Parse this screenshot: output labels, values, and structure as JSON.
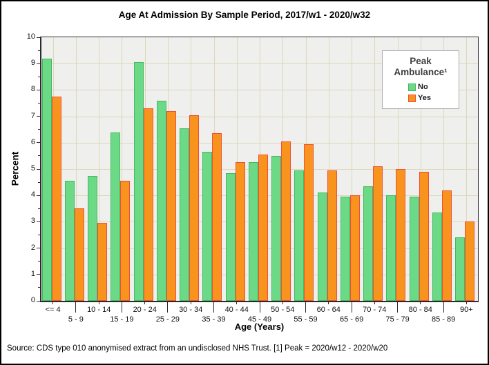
{
  "title": "Age At Admission By Sample Period, 2017/w1 - 2020/w32",
  "source": "Source: CDS type 010 anonymised extract from an undisclosed NHS Trust. [1] Peak = 2020/w12 - 2020/w20",
  "chart_data": {
    "type": "bar",
    "title": "Age At Admission By Sample Period, 2017/w1 - 2020/w32",
    "xlabel": "Age (Years)",
    "ylabel": "Percent",
    "ylim": [
      0,
      10
    ],
    "y_ticks": [
      0,
      1,
      2,
      3,
      4,
      5,
      6,
      7,
      8,
      9,
      10
    ],
    "y_minor_tick_step": 0.5,
    "grid": true,
    "grid_color": "#dcd8b6",
    "plot_bg": "#efefee",
    "legend": {
      "title": "Peak Ambulance¹",
      "position": "top-right"
    },
    "categories": [
      "<= 4",
      "5 - 9",
      "10 - 14",
      "15 - 19",
      "20 - 24",
      "25 - 29",
      "30 - 34",
      "35 - 39",
      "40 - 44",
      "45 - 49",
      "50 - 54",
      "55 - 59",
      "60 - 64",
      "65 - 69",
      "70 - 74",
      "75 - 79",
      "80 - 84",
      "85 - 89",
      "90+"
    ],
    "series": [
      {
        "name": "No",
        "fill": "#6cd986",
        "border": "#43b862",
        "values": [
          9.2,
          4.55,
          4.75,
          6.4,
          9.05,
          7.6,
          6.55,
          5.65,
          4.85,
          5.25,
          5.5,
          4.95,
          4.1,
          3.95,
          4.35,
          4.0,
          3.95,
          3.35,
          2.4
        ]
      },
      {
        "name": "Yes",
        "fill": "#f8941d",
        "border": "#ee4f38",
        "values": [
          7.75,
          3.5,
          2.95,
          4.55,
          7.3,
          7.2,
          7.05,
          6.35,
          5.25,
          5.55,
          6.05,
          5.95,
          4.95,
          4.0,
          5.1,
          5.0,
          4.9,
          4.2,
          3.0
        ]
      }
    ]
  }
}
